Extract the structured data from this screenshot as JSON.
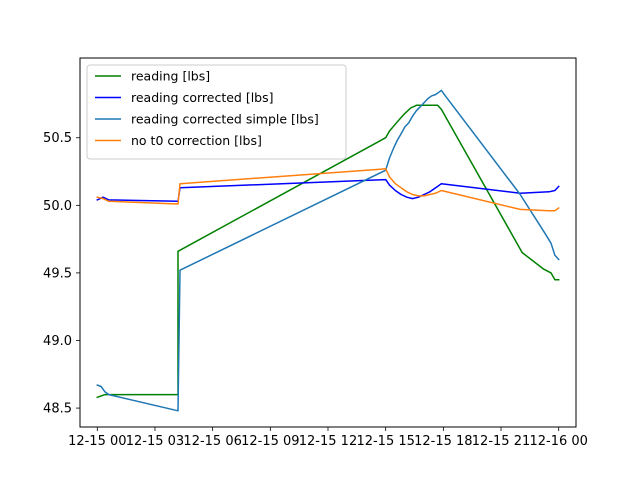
{
  "chart_data": {
    "type": "line",
    "title": "",
    "xlabel": "",
    "ylabel": "",
    "xlim": [
      -0.9,
      24.9
    ],
    "ylim": [
      48.36,
      51.09
    ],
    "xticks": [
      {
        "value": 0,
        "label": "12-15 00"
      },
      {
        "value": 3,
        "label": "12-15 03"
      },
      {
        "value": 6,
        "label": "12-15 06"
      },
      {
        "value": 9,
        "label": "12-15 09"
      },
      {
        "value": 12,
        "label": "12-15 12"
      },
      {
        "value": 15,
        "label": "12-15 15"
      },
      {
        "value": 18,
        "label": "12-15 18"
      },
      {
        "value": 21,
        "label": "12-15 21"
      },
      {
        "value": 24,
        "label": "12-16 00"
      }
    ],
    "yticks": [
      {
        "value": 48.5,
        "label": "48.5"
      },
      {
        "value": 49.0,
        "label": "49.0"
      },
      {
        "value": 49.5,
        "label": "49.5"
      },
      {
        "value": 50.0,
        "label": "50.0"
      },
      {
        "value": 50.5,
        "label": "50.5"
      }
    ],
    "grid": false,
    "legend_position": "upper-left",
    "series": [
      {
        "name": "reading [lbs]",
        "color": "#008000",
        "x": [
          0.0,
          0.4,
          4.2,
          4.2,
          15.0,
          15.2,
          15.5,
          15.8,
          16.0,
          16.3,
          16.6,
          16.9,
          17.2,
          17.5,
          17.7,
          17.9,
          22.1,
          23.2,
          23.6,
          23.8,
          24.0
        ],
        "y": [
          48.58,
          48.6,
          48.6,
          49.66,
          50.5,
          50.55,
          50.6,
          50.65,
          50.68,
          50.72,
          50.74,
          50.74,
          50.74,
          50.74,
          50.74,
          50.71,
          49.65,
          49.53,
          49.5,
          49.45,
          49.45
        ]
      },
      {
        "name": "reading corrected [lbs]",
        "color": "#0000ff",
        "x": [
          0.0,
          0.3,
          0.6,
          4.2,
          4.3,
          15.0,
          15.2,
          15.5,
          15.8,
          16.1,
          16.4,
          16.7,
          17.0,
          17.3,
          17.6,
          17.9,
          22.0,
          23.5,
          23.8,
          24.0
        ],
        "y": [
          50.04,
          50.06,
          50.04,
          50.03,
          50.13,
          50.19,
          50.15,
          50.11,
          50.08,
          50.06,
          50.05,
          50.06,
          50.08,
          50.1,
          50.13,
          50.16,
          50.09,
          50.1,
          50.11,
          50.14
        ]
      },
      {
        "name": "reading corrected simple [lbs]",
        "color": "#1f77b4",
        "x": [
          0.0,
          0.2,
          0.4,
          0.6,
          4.2,
          4.3,
          15.0,
          15.2,
          15.4,
          15.6,
          15.8,
          16.0,
          16.2,
          16.4,
          16.6,
          16.8,
          17.0,
          17.2,
          17.4,
          17.6,
          17.8,
          17.9,
          18.1,
          22.0,
          23.3,
          23.6,
          23.8,
          24.0
        ],
        "y": [
          48.67,
          48.66,
          48.62,
          48.6,
          48.48,
          49.52,
          50.26,
          50.35,
          50.42,
          50.48,
          50.53,
          50.58,
          50.61,
          50.66,
          50.7,
          50.73,
          50.76,
          50.79,
          50.81,
          50.82,
          50.84,
          50.85,
          50.81,
          50.08,
          49.79,
          49.72,
          49.63,
          49.6
        ]
      },
      {
        "name": "no t0 correction [lbs]",
        "color": "#ff7f0e",
        "x": [
          0.0,
          0.3,
          0.6,
          4.2,
          4.3,
          15.0,
          15.2,
          15.5,
          15.8,
          16.1,
          16.4,
          16.7,
          17.0,
          17.3,
          17.6,
          17.9,
          22.0,
          23.5,
          23.8,
          24.0
        ],
        "y": [
          50.06,
          50.05,
          50.03,
          50.01,
          50.16,
          50.27,
          50.21,
          50.16,
          50.13,
          50.1,
          50.08,
          50.07,
          50.07,
          50.08,
          50.09,
          50.11,
          49.97,
          49.96,
          49.96,
          49.98
        ]
      }
    ]
  }
}
